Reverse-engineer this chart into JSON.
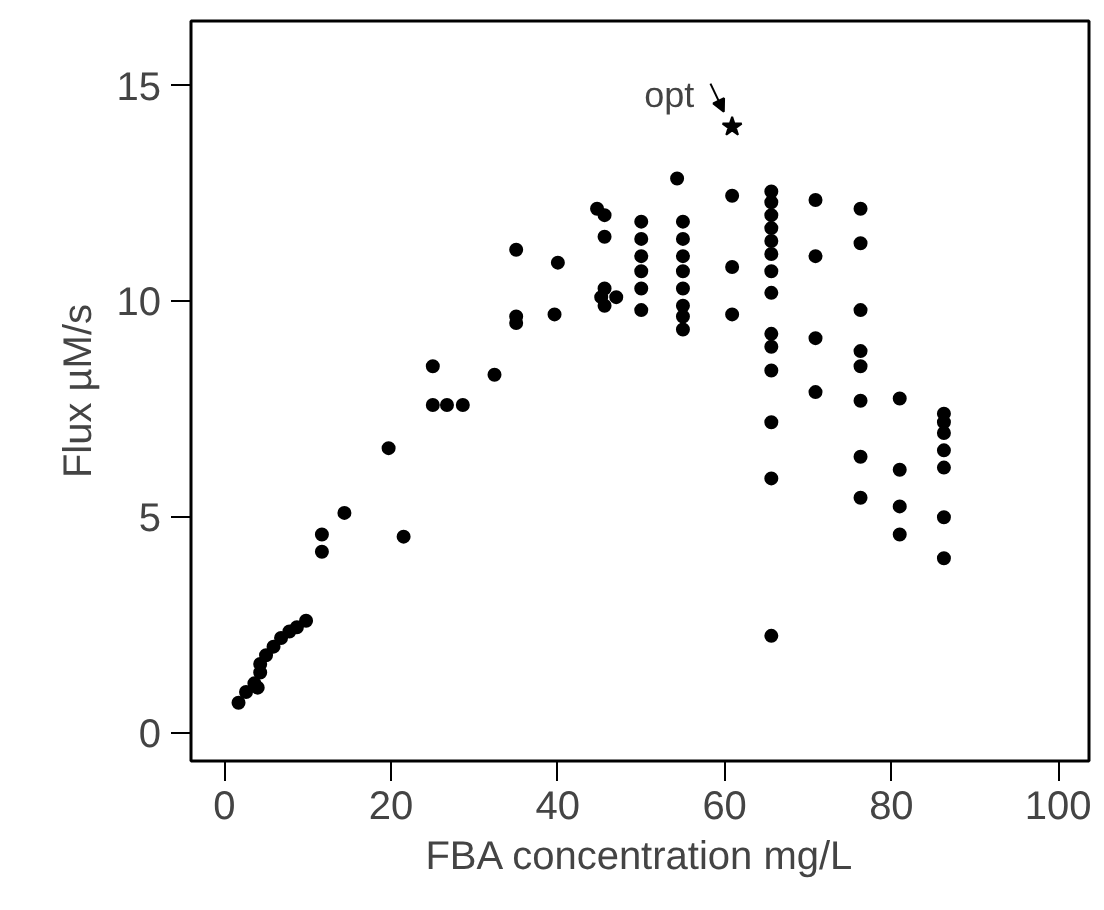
{
  "chart_data": {
    "type": "scatter",
    "xlabel": "FBA concentration mg/L",
    "ylabel": "Flux µM/s",
    "xlim": [
      -4,
      103.7
    ],
    "ylim": [
      -0.65,
      16.5
    ],
    "xticks": [
      0,
      20,
      40,
      60,
      80,
      100
    ],
    "yticks": [
      0,
      5,
      10,
      15
    ],
    "grid": false,
    "marker": "circle",
    "series": [
      {
        "color": "#000000",
        "x": [
          1.7,
          2.6,
          3.6,
          4.0,
          4.3,
          4.3,
          5.0,
          5.9,
          6.8,
          7.8,
          8.7,
          9.8,
          11.7,
          11.7,
          14.4,
          19.7,
          21.5,
          25,
          25,
          26.7,
          28.6,
          32.4,
          35,
          35,
          35,
          40,
          39.6,
          44.7,
          45.6,
          45.6,
          45.6,
          45.6,
          47,
          45.2,
          50,
          50,
          50,
          50,
          50,
          50,
          55,
          55,
          55,
          55,
          55,
          55,
          55,
          55,
          54.3,
          60.9,
          60.9,
          60.9,
          65.6,
          65.6,
          65.6,
          65.6,
          65.6,
          65.6,
          65.6,
          65.6,
          65.6,
          65.6,
          65.6,
          65.6,
          65.6,
          65.6,
          70.9,
          70.9,
          70.9,
          70.9,
          76.3,
          76.3,
          76.3,
          76.3,
          76.3,
          76.3,
          76.3,
          76.3,
          81,
          81,
          81,
          81,
          86.3,
          86.3,
          86.3,
          86.3,
          86.3,
          86.3,
          86.3
        ],
        "values": [
          0.7,
          0.95,
          1.15,
          1.05,
          1.4,
          1.6,
          1.8,
          2.0,
          2.2,
          2.35,
          2.45,
          2.6,
          4.6,
          4.2,
          5.1,
          6.6,
          4.55,
          8.5,
          7.6,
          7.6,
          7.6,
          8.3,
          11.2,
          9.5,
          9.65,
          10.9,
          9.7,
          12.15,
          12.0,
          11.5,
          10.3,
          9.9,
          10.1,
          10.1,
          11.85,
          11.45,
          11.05,
          10.7,
          10.3,
          9.8,
          11.85,
          11.45,
          11.05,
          10.7,
          10.3,
          9.9,
          9.65,
          9.35,
          12.85,
          12.45,
          10.8,
          9.7,
          12.55,
          12.3,
          12.0,
          11.7,
          11.4,
          11.1,
          10.7,
          10.2,
          9.25,
          8.95,
          8.4,
          7.2,
          5.9,
          2.25,
          12.35,
          11.05,
          9.15,
          7.9,
          12.15,
          11.35,
          9.8,
          8.85,
          8.5,
          7.7,
          6.4,
          5.45,
          7.75,
          6.1,
          5.25,
          4.6,
          7.4,
          7.2,
          6.95,
          6.55,
          6.15,
          5.0,
          4.05
        ]
      },
      {
        "color": "#000000",
        "marker": "star",
        "x": [
          60.9
        ],
        "values": [
          14.05
        ]
      }
    ],
    "annotations": [
      {
        "text": "opt",
        "x": 60.9,
        "y": 14.05
      }
    ]
  }
}
